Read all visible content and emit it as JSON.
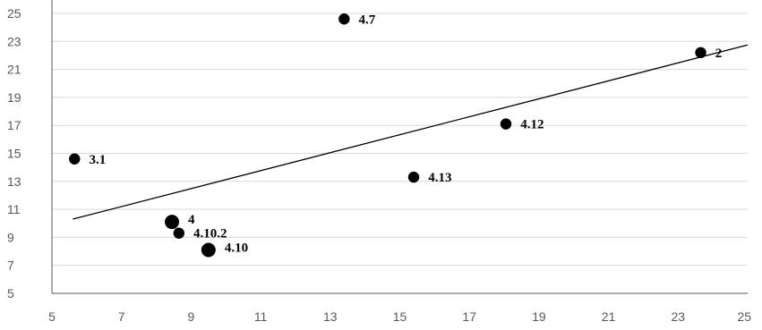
{
  "chart_data": {
    "type": "scatter",
    "title": "",
    "xlabel": "",
    "ylabel": "",
    "xlim": [
      5,
      25
    ],
    "ylim": [
      5,
      25
    ],
    "x_ticks": [
      "5",
      "7",
      "9",
      "11",
      "13",
      "15",
      "17",
      "19",
      "21",
      "23",
      "25"
    ],
    "y_ticks": [
      "5",
      "7",
      "9",
      "11",
      "13",
      "15",
      "17",
      "19",
      "21",
      "23",
      "25"
    ],
    "grid": "horizontal",
    "legend": "none",
    "colors": {
      "marker": "#000000",
      "trendline": "#000000",
      "grid": "#d9d9d9",
      "axis": "#595959",
      "tick_text": "#595959"
    },
    "points": [
      {
        "label": "4.7",
        "x": 13.4,
        "y": 24.6,
        "size": "normal"
      },
      {
        "label": "2",
        "x": 23.65,
        "y": 22.2,
        "size": "normal"
      },
      {
        "label": "4.12",
        "x": 18.05,
        "y": 17.1,
        "size": "normal"
      },
      {
        "label": "3.1",
        "x": 5.65,
        "y": 14.6,
        "size": "normal"
      },
      {
        "label": "4.13",
        "x": 15.4,
        "y": 13.3,
        "size": "normal"
      },
      {
        "label": "4",
        "x": 8.45,
        "y": 10.1,
        "size": "large"
      },
      {
        "label": "4.10.2",
        "x": 8.65,
        "y": 9.3,
        "size": "normal"
      },
      {
        "label": "4.10",
        "x": 9.5,
        "y": 8.1,
        "size": "large"
      }
    ],
    "trendline": {
      "x": [
        5.6,
        25.0
      ],
      "y": [
        10.3,
        22.75
      ]
    }
  }
}
